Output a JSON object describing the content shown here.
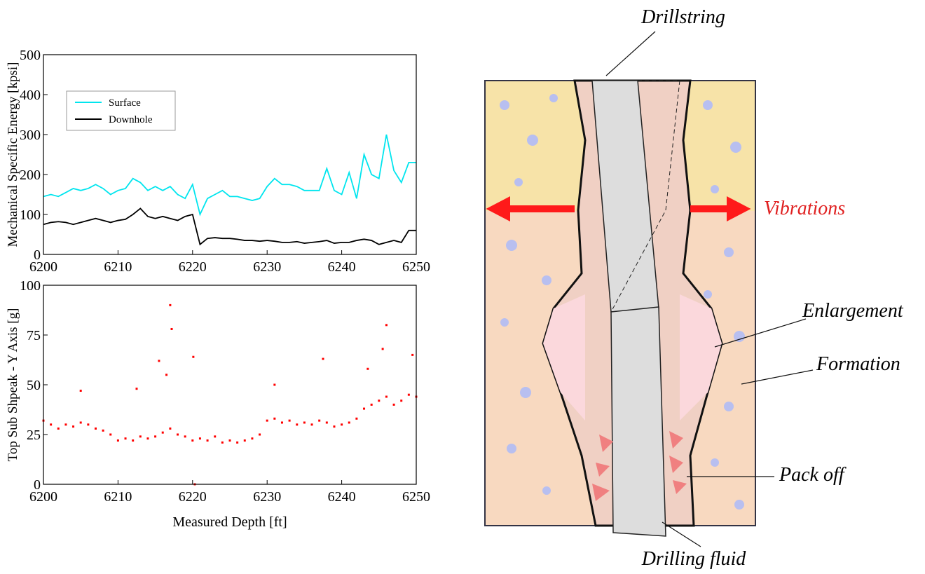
{
  "chart_data": [
    {
      "type": "line",
      "ylabel": "Mechanical Specific Energy [kpsi]",
      "x": [
        6200,
        6201,
        6202,
        6203,
        6204,
        6205,
        6206,
        6207,
        6208,
        6209,
        6210,
        6211,
        6212,
        6213,
        6214,
        6215,
        6216,
        6217,
        6218,
        6219,
        6220,
        6221,
        6222,
        6223,
        6224,
        6225,
        6226,
        6227,
        6228,
        6229,
        6230,
        6231,
        6232,
        6233,
        6234,
        6235,
        6236,
        6237,
        6238,
        6239,
        6240,
        6241,
        6242,
        6243,
        6244,
        6245,
        6246,
        6247,
        6248,
        6249,
        6250
      ],
      "series": [
        {
          "name": "Surface",
          "color": "#00e5ee",
          "values": [
            145,
            150,
            145,
            155,
            165,
            160,
            165,
            175,
            165,
            150,
            160,
            165,
            190,
            180,
            160,
            170,
            160,
            170,
            150,
            140,
            175,
            100,
            140,
            150,
            160,
            145,
            145,
            140,
            135,
            140,
            170,
            190,
            175,
            175,
            170,
            160,
            160,
            160,
            215,
            160,
            150,
            205,
            140,
            250,
            200,
            190,
            300,
            210,
            180,
            230,
            230
          ]
        },
        {
          "name": "Downhole",
          "color": "#000000",
          "values": [
            75,
            80,
            82,
            80,
            75,
            80,
            85,
            90,
            85,
            80,
            85,
            88,
            100,
            115,
            95,
            90,
            95,
            90,
            85,
            95,
            100,
            25,
            40,
            42,
            40,
            40,
            38,
            35,
            35,
            33,
            35,
            33,
            30,
            30,
            32,
            28,
            30,
            32,
            35,
            28,
            30,
            30,
            35,
            38,
            35,
            25,
            30,
            35,
            30,
            60,
            60
          ]
        }
      ],
      "xlim": [
        6200,
        6250
      ],
      "ylim": [
        0,
        500
      ],
      "xticks": [
        6200,
        6210,
        6220,
        6230,
        6240,
        6250
      ],
      "yticks": [
        0,
        100,
        200,
        300,
        400,
        500
      ],
      "legend": "upper left"
    },
    {
      "type": "scatter",
      "ylabel": "Top Sub Shpeak - Y Axis [g]",
      "xlabel": "Measured Depth [ft]",
      "color": "#ff0000",
      "x": [
        6200,
        6201,
        6202,
        6203,
        6204,
        6205,
        6206,
        6207,
        6208,
        6209,
        6210,
        6211,
        6212,
        6213,
        6214,
        6215,
        6216,
        6217,
        6218,
        6219,
        6220,
        6221,
        6222,
        6223,
        6224,
        6225,
        6226,
        6227,
        6228,
        6229,
        6230,
        6231,
        6232,
        6233,
        6234,
        6235,
        6236,
        6237,
        6238,
        6239,
        6240,
        6241,
        6242,
        6243,
        6244,
        6245,
        6246,
        6247,
        6248,
        6249,
        6250,
        6215.5,
        6217,
        6217.2,
        6216.5,
        6220.3,
        6220.1,
        6237.5,
        6246,
        6245.5,
        6249.5,
        6205,
        6212.5,
        6231,
        6243.5
      ],
      "values": [
        32,
        30,
        28,
        30,
        29,
        31,
        30,
        28,
        27,
        25,
        22,
        23,
        22,
        24,
        23,
        24,
        26,
        28,
        25,
        24,
        22,
        23,
        22,
        24,
        21,
        22,
        21,
        22,
        23,
        25,
        32,
        33,
        31,
        32,
        30,
        31,
        30,
        32,
        31,
        29,
        30,
        31,
        33,
        38,
        40,
        42,
        44,
        40,
        42,
        45,
        44,
        62,
        90,
        78,
        55,
        0,
        64,
        63,
        80,
        68,
        65,
        47,
        48,
        50,
        58
      ],
      "xlim": [
        6200,
        6250
      ],
      "ylim": [
        0,
        100
      ],
      "xticks": [
        6200,
        6210,
        6220,
        6230,
        6240,
        6250
      ],
      "yticks": [
        0,
        25,
        50,
        75,
        100
      ]
    }
  ],
  "diagram": {
    "labels": {
      "drillstring": "Drillstring",
      "vibrations": "Vibrations",
      "enlargement": "Enlargement",
      "formation": "Formation",
      "pack_off": "Pack off",
      "drilling_fluid": "Drilling fluid"
    }
  }
}
